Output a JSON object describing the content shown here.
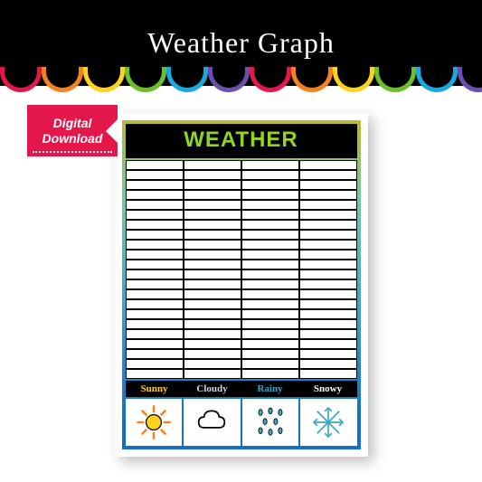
{
  "header": {
    "title": "Weather Graph"
  },
  "scallops": {
    "colors": [
      "#e4174b",
      "#f58220",
      "#ffd21f",
      "#6abf2a",
      "#1aa8e0",
      "#6b4fb0",
      "#e4174b",
      "#f58220",
      "#ffd21f",
      "#6abf2a",
      "#1aa8e0",
      "#6b4fb0"
    ]
  },
  "badge": {
    "line1": "Digital",
    "line2": "Download",
    "bg": "#e4174b"
  },
  "sheet": {
    "title": "WEATHER",
    "title_color": "#8fd41f",
    "gradient": [
      "#b8bb2a",
      "#6fc9a8",
      "#3aa8c9",
      "#1470c4"
    ],
    "grid": {
      "rows": 22,
      "cols": 4
    },
    "categories": [
      {
        "label": "Sunny",
        "color": "#ffd21f",
        "icon": "sun"
      },
      {
        "label": "Cloudy",
        "color": "#d8d3e8",
        "icon": "cloud"
      },
      {
        "label": "Rainy",
        "color": "#3aa8c9",
        "icon": "rain"
      },
      {
        "label": "Snowy",
        "color": "#ffffff",
        "icon": "snow"
      }
    ]
  }
}
